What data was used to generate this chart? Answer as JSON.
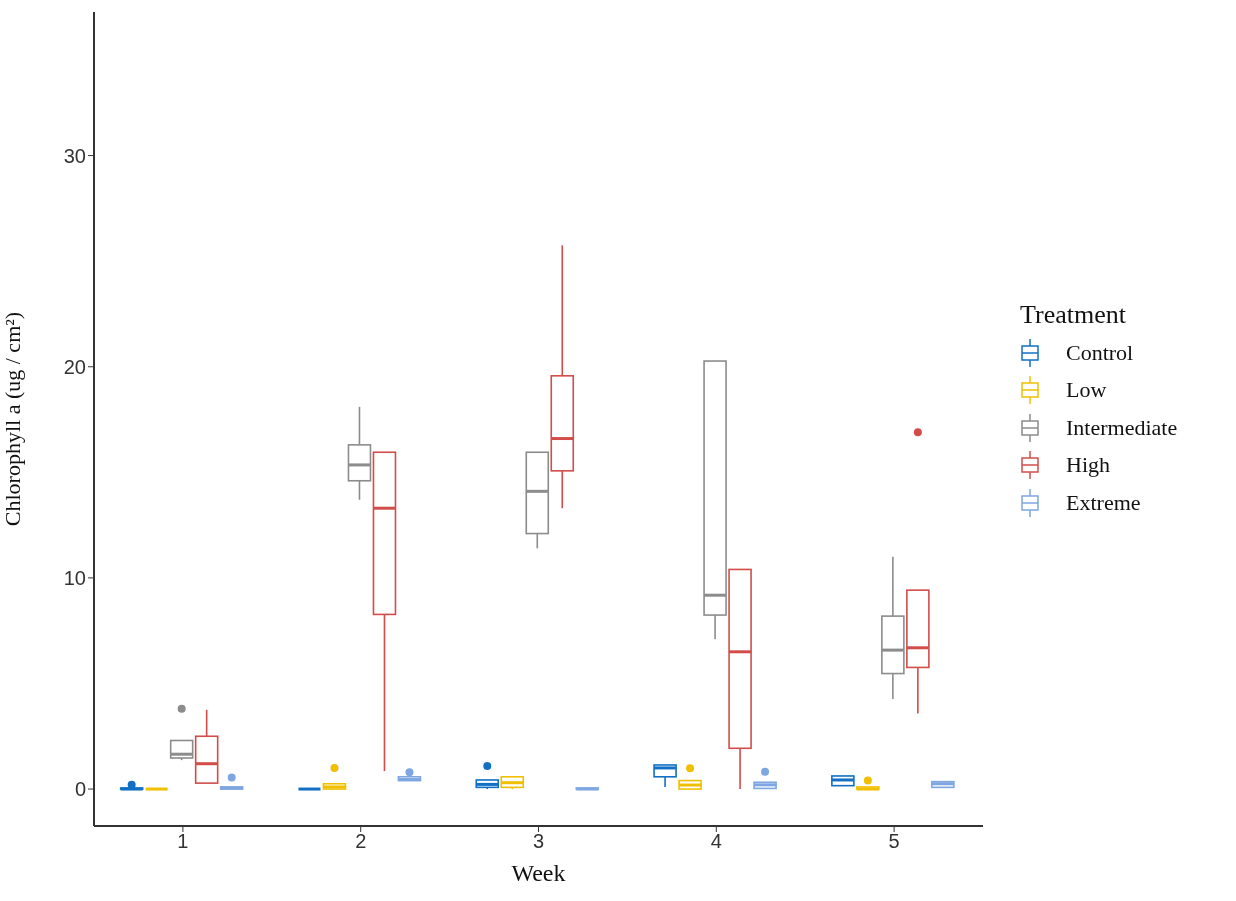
{
  "chart_data": {
    "type": "box",
    "xlabel": "Week",
    "ylabel": "Chlorophyll a (ug / cm²)",
    "legend_title": "Treatment",
    "legend": "right",
    "categories": [
      "1",
      "2",
      "3",
      "4",
      "5"
    ],
    "ylim": [
      -1.75,
      36.8
    ],
    "yticks": [
      0,
      10,
      20,
      30
    ],
    "series": [
      {
        "name": "Control",
        "color": "#1170c4",
        "boxes": [
          {
            "low": 0,
            "q1": 0,
            "median": 0,
            "q3": 0.05,
            "high": 0.1,
            "outliers": [
              0.2
            ]
          },
          {
            "low": 0,
            "q1": 0,
            "median": 0,
            "q3": 0,
            "high": 0
          },
          {
            "low": 0,
            "q1": 0.08,
            "median": 0.22,
            "q3": 0.43,
            "high": 0.43,
            "outliers": [
              1.09
            ]
          },
          {
            "low": 0.1,
            "q1": 0.58,
            "median": 1.0,
            "q3": 1.14,
            "high": 1.14
          },
          {
            "low": 0.16,
            "q1": 0.16,
            "median": 0.43,
            "q3": 0.62,
            "high": 0.62
          }
        ]
      },
      {
        "name": "Low",
        "color": "#f0c000",
        "boxes": [
          {
            "low": 0,
            "q1": 0,
            "median": 0,
            "q3": 0,
            "high": 0
          },
          {
            "low": 0,
            "q1": 0,
            "median": 0.1,
            "q3": 0.25,
            "high": 0.25,
            "outliers": [
              1.0
            ]
          },
          {
            "low": 0,
            "q1": 0.08,
            "median": 0.3,
            "q3": 0.58,
            "high": 0.58
          },
          {
            "low": 0,
            "q1": 0,
            "median": 0.19,
            "q3": 0.4,
            "high": 0.4,
            "outliers": [
              0.98
            ]
          },
          {
            "low": 0,
            "q1": 0,
            "median": 0,
            "q3": 0.1,
            "high": 0.1,
            "outliers": [
              0.4
            ]
          }
        ]
      },
      {
        "name": "Intermediate",
        "color": "#8c8c8c",
        "boxes": [
          {
            "low": 1.37,
            "q1": 1.47,
            "median": 1.65,
            "q3": 2.3,
            "high": 2.3,
            "outliers": [
              3.8
            ]
          },
          {
            "low": 13.7,
            "q1": 14.6,
            "median": 15.35,
            "q3": 16.3,
            "high": 18.1
          },
          {
            "low": 11.4,
            "q1": 12.1,
            "median": 14.1,
            "q3": 15.95,
            "high": 15.95
          },
          {
            "low": 7.1,
            "q1": 8.24,
            "median": 9.18,
            "q3": 20.27,
            "high": 20.27
          },
          {
            "low": 4.26,
            "q1": 5.47,
            "median": 6.58,
            "q3": 8.19,
            "high": 11.0
          }
        ]
      },
      {
        "name": "High",
        "color": "#d24d4a",
        "boxes": [
          {
            "low": 0.28,
            "q1": 0.28,
            "median": 1.2,
            "q3": 2.5,
            "high": 3.75
          },
          {
            "low": 0.85,
            "q1": 8.27,
            "median": 13.3,
            "q3": 15.95,
            "high": 15.95
          },
          {
            "low": 13.3,
            "q1": 15.07,
            "median": 16.6,
            "q3": 19.57,
            "high": 25.75
          },
          {
            "low": 0,
            "q1": 1.93,
            "median": 6.5,
            "q3": 10.4,
            "high": 10.4
          },
          {
            "low": 3.58,
            "q1": 5.76,
            "median": 6.69,
            "q3": 9.42,
            "high": 9.42,
            "outliers": [
              16.9
            ]
          }
        ]
      },
      {
        "name": "Extreme",
        "color": "#7ea6e0",
        "boxes": [
          {
            "low": 0,
            "q1": 0,
            "median": 0.05,
            "q3": 0.1,
            "high": 0.1,
            "outliers": [
              0.55
            ]
          },
          {
            "low": 0.4,
            "q1": 0.4,
            "median": 0.45,
            "q3": 0.58,
            "high": 0.58,
            "outliers": [
              0.8
            ]
          },
          {
            "low": 0,
            "q1": 0,
            "median": 0,
            "q3": 0.05,
            "high": 0.05
          },
          {
            "low": 0.03,
            "q1": 0.03,
            "median": 0.2,
            "q3": 0.32,
            "high": 0.32,
            "outliers": [
              0.82
            ]
          },
          {
            "low": 0.08,
            "q1": 0.08,
            "median": 0.25,
            "q3": 0.35,
            "high": 0.35
          }
        ]
      }
    ]
  }
}
